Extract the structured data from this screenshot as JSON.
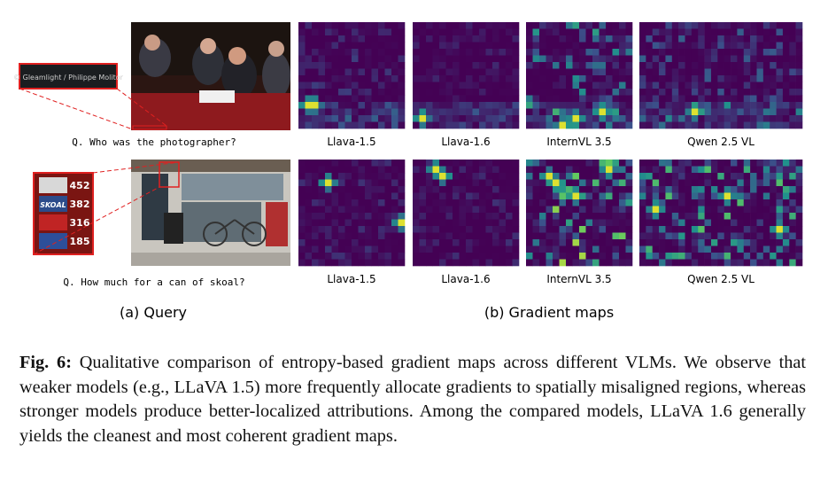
{
  "figure": {
    "rows": [
      {
        "question": "Q. Who was the photographer?",
        "crop_text": "© Gleamlight / Philippe Molitor",
        "models": [
          "Llava-1.5",
          "Llava-1.6",
          "InternVL 3.5",
          "Qwen 2.5 VL"
        ]
      },
      {
        "question": "Q. How much for a can of skoal?",
        "crop_brand": "SKOAL",
        "crop_prices": [
          "452",
          "382",
          "316",
          "185"
        ],
        "models": [
          "Llava-1.5",
          "Llava-1.6",
          "InternVL 3.5",
          "Qwen 2.5 VL"
        ]
      }
    ],
    "panel_a": "(a) Query",
    "panel_b": "(b) Gradient maps"
  },
  "caption": {
    "label": "Fig. 6:",
    "text": "Qualitative comparison of entropy-based gradient maps across different VLMs. We observe that weaker models (e.g., LLaVA 1.5) more frequently allocate gradients to spatially misaligned regions, whereas stronger models produce better-localized attributions. Among the compared models, LLaVA 1.6 generally yields the cleanest and most coherent gradient maps."
  }
}
